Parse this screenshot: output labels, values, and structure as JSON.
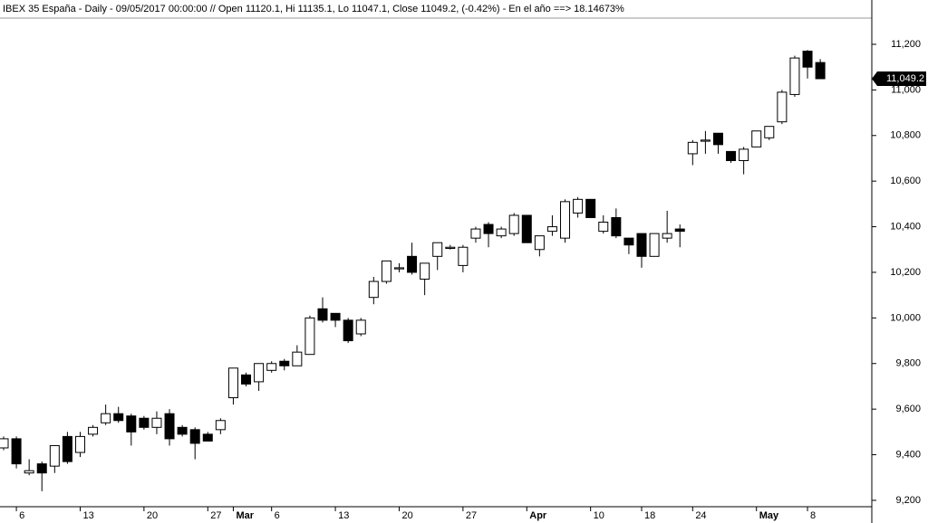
{
  "chart_data": {
    "type": "candlestick",
    "title": "IBEX 35 España - Daily - 09/05/2017 00:00:00 // Open 11120.1, Hi 11135.1, Lo 11047.1, Close 11049.2, (-0.42%) - En el año ==> 18.14673%",
    "categories": [
      null,
      "6",
      null,
      null,
      null,
      null,
      "13",
      null,
      null,
      null,
      null,
      "20",
      null,
      null,
      null,
      null,
      "27",
      null,
      "Mar",
      null,
      null,
      "6",
      null,
      null,
      null,
      null,
      "13",
      null,
      null,
      null,
      null,
      "20",
      null,
      null,
      null,
      null,
      "27",
      null,
      null,
      null,
      null,
      "Apr",
      null,
      null,
      null,
      null,
      "10",
      null,
      null,
      null,
      "18",
      null,
      null,
      null,
      "24",
      null,
      null,
      null,
      null,
      "May",
      null,
      null,
      null,
      "8",
      null
    ],
    "bold_categories": [
      "Mar",
      "Apr",
      "May"
    ],
    "open": [
      9430,
      9470,
      9320,
      9360,
      9350,
      9480,
      9410,
      9490,
      9540,
      9580,
      9570,
      9560,
      9520,
      9580,
      9520,
      9510,
      9490,
      9510,
      9650,
      9750,
      9720,
      9770,
      9810,
      9790,
      9840,
      10040,
      10020,
      9990,
      9930,
      10090,
      10160,
      10215,
      10270,
      10170,
      10270,
      10305,
      10230,
      10350,
      10410,
      10360,
      10370,
      10450,
      10300,
      10380,
      10350,
      10460,
      10520,
      10380,
      10440,
      10350,
      10370,
      10270,
      10350,
      10390,
      10720,
      10775,
      10810,
      10730,
      10690,
      10750,
      10790,
      10860,
      10980,
      11170,
      11120.1
    ],
    "high": [
      9480,
      9480,
      9380,
      9370,
      9440,
      9500,
      9500,
      9530,
      9620,
      9610,
      9580,
      9570,
      9590,
      9600,
      9530,
      9520,
      9500,
      9560,
      9780,
      9760,
      9800,
      9810,
      9820,
      9880,
      10010,
      10090,
      10020,
      10000,
      10000,
      10180,
      10250,
      10240,
      10330,
      10240,
      10330,
      10320,
      10320,
      10400,
      10420,
      10400,
      10460,
      10450,
      10360,
      10450,
      10520,
      10530,
      10520,
      10450,
      10480,
      10350,
      10370,
      10370,
      10470,
      10410,
      10780,
      10820,
      10810,
      10730,
      10750,
      10820,
      10840,
      11000,
      11150,
      11175,
      11135.1
    ],
    "low": [
      9420,
      9340,
      9310,
      9240,
      9320,
      9360,
      9390,
      9480,
      9530,
      9540,
      9440,
      9510,
      9490,
      9440,
      9480,
      9380,
      9460,
      9490,
      9620,
      9700,
      9680,
      9760,
      9770,
      9790,
      9840,
      9980,
      9960,
      9890,
      9920,
      10060,
      10150,
      10200,
      10190,
      10100,
      10210,
      10300,
      10200,
      10330,
      10310,
      10350,
      10360,
      10330,
      10270,
      10360,
      10330,
      10440,
      10440,
      10370,
      10350,
      10280,
      10220,
      10270,
      10330,
      10310,
      10670,
      10720,
      10720,
      10680,
      10630,
      10750,
      10780,
      10850,
      10970,
      11050,
      11047.1
    ],
    "close": [
      9470,
      9360,
      9330,
      9320,
      9440,
      9370,
      9480,
      9520,
      9580,
      9550,
      9500,
      9520,
      9560,
      9470,
      9490,
      9450,
      9460,
      9550,
      9780,
      9710,
      9800,
      9800,
      9790,
      9850,
      10000,
      9990,
      9990,
      9900,
      9990,
      10160,
      10250,
      10220,
      10200,
      10240,
      10330,
      10310,
      10310,
      10390,
      10370,
      10390,
      10450,
      10330,
      10360,
      10400,
      10510,
      10520,
      10440,
      10420,
      10360,
      10320,
      10270,
      10370,
      10370,
      10380,
      10770,
      10780,
      10760,
      10690,
      10740,
      10820,
      10840,
      10990,
      11140,
      11100,
      11049.2
    ],
    "up_color": "#ffffff",
    "down_color": "#000000",
    "last_price": 11049.2,
    "last_price_label": "11,049.2",
    "ylim": [
      9172,
      11315
    ],
    "yticks": [
      {
        "value": 9200,
        "label": "9,200"
      },
      {
        "value": 9400,
        "label": "9,400"
      },
      {
        "value": 9600,
        "label": "9,600"
      },
      {
        "value": 9800,
        "label": "9,800"
      },
      {
        "value": 10000,
        "label": "10,000"
      },
      {
        "value": 10200,
        "label": "10,200"
      },
      {
        "value": 10400,
        "label": "10,400"
      },
      {
        "value": 10600,
        "label": "10,600"
      },
      {
        "value": 10800,
        "label": "10,800"
      },
      {
        "value": 11000,
        "label": "11,000"
      },
      {
        "value": 11200,
        "label": "11,200"
      }
    ],
    "grid": false
  }
}
